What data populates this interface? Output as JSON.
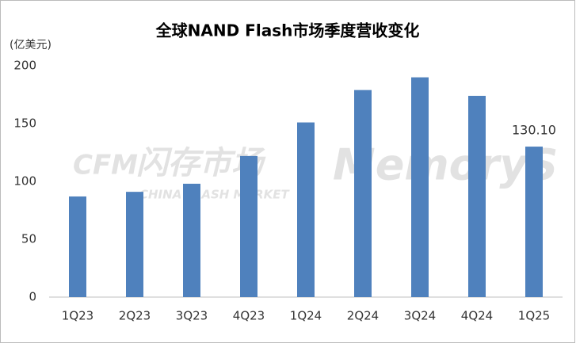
{
  "chart_data": {
    "type": "bar",
    "title": "全球NAND Flash市场季度营收变化",
    "y_label": "(亿美元)",
    "categories": [
      "1Q23",
      "2Q23",
      "3Q23",
      "4Q23",
      "1Q24",
      "2Q24",
      "3Q24",
      "4Q24",
      "1Q25"
    ],
    "values": [
      87,
      91,
      98,
      122,
      151,
      179,
      190,
      174,
      130.1
    ],
    "value_labels": [
      null,
      null,
      null,
      null,
      null,
      null,
      null,
      null,
      "130.10"
    ],
    "color": "#4f81bd",
    "ylim": [
      0,
      200
    ],
    "yticks": [
      0,
      50,
      100,
      150,
      200
    ],
    "grid": false,
    "watermarks": [
      "CFM",
      "闪存市场",
      "CHINA FLASH MARKET",
      "MemoryS"
    ]
  }
}
